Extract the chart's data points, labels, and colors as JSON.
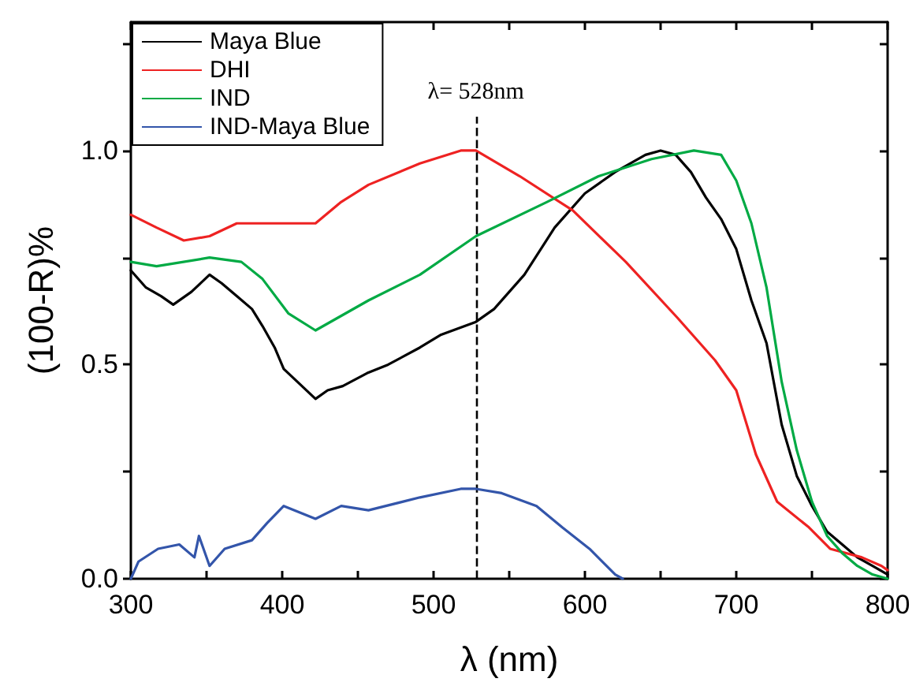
{
  "chart_data": {
    "type": "line",
    "xlabel": "λ (nm)",
    "ylabel": "(100-R)%",
    "xlim": [
      300,
      800
    ],
    "ylim": [
      0,
      1.3
    ],
    "xticks": [
      300,
      {
        "value": 350,
        "label": null
      },
      400,
      {
        "value": 450,
        "label": null
      },
      500,
      {
        "value": 550,
        "label": null
      },
      600,
      {
        "value": 650,
        "label": null
      },
      700,
      {
        "value": 750,
        "label": null
      },
      800
    ],
    "yticks": [
      {
        "value": 0,
        "label": "0.0"
      },
      {
        "value": 0.25,
        "label": null
      },
      {
        "value": 0.5,
        "label": "0.5"
      },
      {
        "value": 0.75,
        "label": null
      },
      {
        "value": 1.0,
        "label": "1.0"
      },
      {
        "value": 1.25,
        "label": null
      }
    ],
    "grid": false,
    "legend": "top left",
    "marker": "none",
    "line_style": "solid",
    "series": [
      {
        "name": "Maya Blue",
        "color": "#000000",
        "x": [
          300,
          310,
          320,
          328,
          340,
          352,
          360,
          370,
          380,
          387,
          395,
          401,
          410,
          422,
          430,
          440,
          456,
          470,
          491,
          505,
          528,
          540,
          560,
          580,
          600,
          620,
          640,
          650,
          660,
          670,
          680,
          690,
          700,
          710,
          720,
          730,
          740,
          750,
          760,
          770,
          780,
          790,
          800
        ],
        "values": [
          0.72,
          0.68,
          0.66,
          0.64,
          0.67,
          0.71,
          0.69,
          0.66,
          0.63,
          0.59,
          0.54,
          0.49,
          0.46,
          0.42,
          0.44,
          0.45,
          0.48,
          0.5,
          0.54,
          0.57,
          0.6,
          0.63,
          0.71,
          0.82,
          0.9,
          0.95,
          0.99,
          1.0,
          0.99,
          0.95,
          0.89,
          0.84,
          0.77,
          0.65,
          0.55,
          0.36,
          0.24,
          0.17,
          0.11,
          0.08,
          0.05,
          0.03,
          0.01
        ]
      },
      {
        "name": "DHI",
        "color": "#ee2222",
        "x": [
          300,
          317,
          335,
          352,
          370,
          387,
          404,
          422,
          439,
          457,
          491,
          518,
          528,
          557,
          592,
          627,
          661,
          686,
          700,
          713,
          727,
          748,
          762,
          783,
          796,
          800
        ],
        "values": [
          0.85,
          0.82,
          0.79,
          0.8,
          0.83,
          0.83,
          0.83,
          0.83,
          0.88,
          0.92,
          0.97,
          1.0,
          1.0,
          0.94,
          0.86,
          0.74,
          0.61,
          0.51,
          0.44,
          0.29,
          0.18,
          0.12,
          0.07,
          0.05,
          0.03,
          0.02
        ]
      },
      {
        "name": "IND",
        "color": "#00aa44",
        "x": [
          300,
          317,
          352,
          373,
          387,
          404,
          422,
          457,
          491,
          528,
          575,
          609,
          644,
          672,
          690,
          700,
          710,
          720,
          730,
          740,
          750,
          760,
          770,
          780,
          790,
          800
        ],
        "values": [
          0.74,
          0.73,
          0.75,
          0.74,
          0.7,
          0.62,
          0.58,
          0.65,
          0.71,
          0.8,
          0.88,
          0.94,
          0.98,
          1.0,
          0.99,
          0.93,
          0.83,
          0.68,
          0.46,
          0.3,
          0.18,
          0.1,
          0.06,
          0.03,
          0.01,
          0.0
        ]
      },
      {
        "name": "IND-Maya Blue",
        "color": "#3355aa",
        "x": [
          300,
          305,
          318,
          332,
          342,
          345,
          352,
          362,
          380,
          390,
          401,
          422,
          439,
          457,
          491,
          518,
          528,
          545,
          568,
          585,
          603,
          620,
          625
        ],
        "values": [
          0.0,
          0.04,
          0.07,
          0.08,
          0.05,
          0.1,
          0.03,
          0.07,
          0.09,
          0.13,
          0.17,
          0.14,
          0.17,
          0.16,
          0.19,
          0.21,
          0.21,
          0.2,
          0.17,
          0.12,
          0.07,
          0.01,
          0.0
        ]
      }
    ],
    "ref_lines": [
      {
        "axis": "x",
        "value": 528,
        "label": "λ= 528nm",
        "color": "#000000",
        "line_style": "dashed"
      }
    ]
  }
}
